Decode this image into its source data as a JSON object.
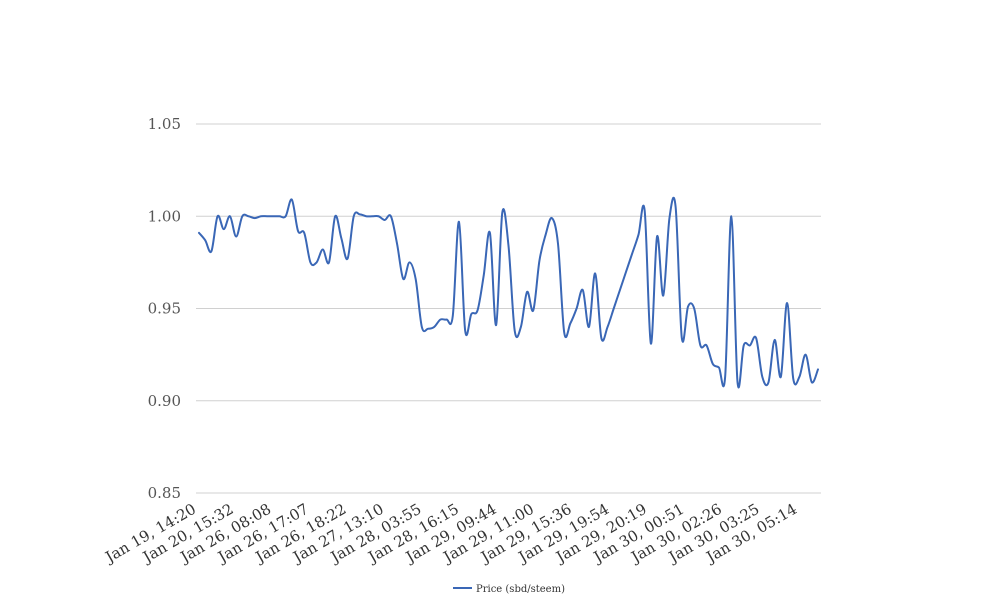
{
  "chart_data": {
    "type": "line",
    "title": "",
    "xlabel": "",
    "ylabel": "",
    "ylim": [
      0.85,
      1.05
    ],
    "yticks": [
      "0.85",
      "0.90",
      "0.95",
      "1.00",
      "1.05"
    ],
    "grid": "horizontal",
    "legend_position": "bottom",
    "color": "#3a67b6",
    "x_tick_labels": [
      "Jan 19, 14:20",
      "Jan 20, 15:32",
      "Jan 26, 08:08",
      "Jan 26, 17:07",
      "Jan 26, 18:22",
      "Jan 27, 13:10",
      "Jan 28, 03:55",
      "Jan 28, 16:15",
      "Jan 29, 09:44",
      "Jan 29, 11:00",
      "Jan 29, 15:36",
      "Jan 29, 19:54",
      "Jan 29, 20:19",
      "Jan 30, 00:51",
      "Jan 30, 02:26",
      "Jan 30, 03:25",
      "Jan 30, 05:14"
    ],
    "series": [
      {
        "name": "Price (sbd/steem)",
        "values": [
          0.991,
          0.987,
          0.981,
          1.0,
          0.993,
          1.0,
          0.989,
          1.0,
          1.0,
          0.999,
          1.0,
          1.0,
          1.0,
          1.0,
          1.0,
          1.009,
          0.992,
          0.991,
          0.975,
          0.975,
          0.982,
          0.975,
          1.0,
          0.988,
          0.977,
          1.0,
          1.001,
          1.0,
          1.0,
          1.0,
          0.998,
          1.0,
          0.985,
          0.966,
          0.975,
          0.966,
          0.94,
          0.939,
          0.94,
          0.944,
          0.944,
          0.946,
          0.997,
          0.938,
          0.947,
          0.949,
          0.968,
          0.991,
          0.941,
          1.002,
          0.984,
          0.938,
          0.94,
          0.959,
          0.949,
          0.976,
          0.99,
          0.999,
          0.985,
          0.937,
          0.942,
          0.95,
          0.96,
          0.94,
          0.969,
          0.934,
          0.94,
          0.95,
          0.96,
          0.97,
          0.98,
          0.99,
          1.003,
          0.931,
          0.989,
          0.957,
          0.999,
          1.005,
          0.934,
          0.951,
          0.95,
          0.93,
          0.93,
          0.92,
          0.918,
          0.913,
          1.0,
          0.91,
          0.93,
          0.93,
          0.934,
          0.913,
          0.91,
          0.933,
          0.913,
          0.953,
          0.912,
          0.913,
          0.925,
          0.91,
          0.917
        ]
      }
    ]
  }
}
